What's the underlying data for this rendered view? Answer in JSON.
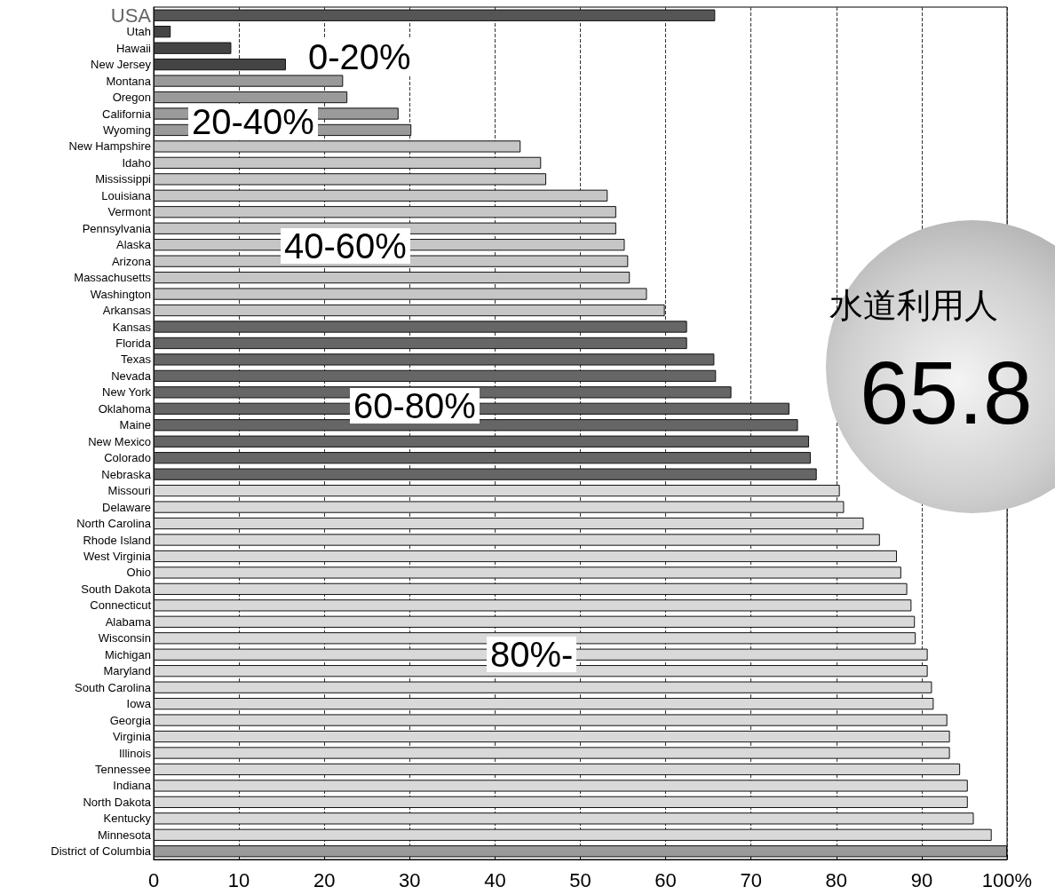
{
  "chart_data": {
    "type": "bar",
    "orientation": "horizontal",
    "categories": [
      "USA",
      "Utah",
      "Hawaii",
      "New Jersey",
      "Montana",
      "Oregon",
      "California",
      "Wyoming",
      "New Hampshire",
      "Idaho",
      "Mississippi",
      "Louisiana",
      "Vermont",
      "Pennsylvania",
      "Alaska",
      "Arizona",
      "Massachusetts",
      "Washington",
      "Arkansas",
      "Kansas",
      "Florida",
      "Texas",
      "Nevada",
      "New York",
      "Oklahoma",
      "Maine",
      "New Mexico",
      "Colorado",
      "Nebraska",
      "Missouri",
      "Delaware",
      "North Carolina",
      "Rhode Island",
      "West Virginia",
      "Ohio",
      "South Dakota",
      "Connecticut",
      "Alabama",
      "Wisconsin",
      "Michigan",
      "Maryland",
      "South Carolina",
      "Iowa",
      "Georgia",
      "Virginia",
      "Illinois",
      "Tennessee",
      "Indiana",
      "North Dakota",
      "Kentucky",
      "Minnesota",
      "District of Columbia"
    ],
    "values": [
      65.8,
      2.0,
      9.1,
      15.5,
      22.2,
      22.7,
      28.7,
      30.2,
      43.0,
      45.4,
      46.0,
      53.2,
      54.2,
      54.2,
      55.2,
      55.6,
      55.8,
      57.8,
      59.9,
      62.5,
      62.5,
      65.7,
      65.9,
      67.7,
      74.5,
      75.5,
      76.8,
      77.0,
      77.7,
      80.4,
      80.9,
      83.2,
      85.1,
      87.1,
      87.6,
      88.3,
      88.8,
      89.2,
      89.3,
      90.7,
      90.7,
      91.2,
      91.4,
      93.0,
      93.3,
      93.3,
      94.5,
      95.4,
      95.4,
      96.1,
      98.2,
      100
    ],
    "colors": [
      "#555555",
      "#444444",
      "#444444",
      "#444444",
      "#9a9a9a",
      "#9a9a9a",
      "#9a9a9a",
      "#9a9a9a",
      "#c6c6c6",
      "#c6c6c6",
      "#c6c6c6",
      "#c6c6c6",
      "#c6c6c6",
      "#c6c6c6",
      "#c6c6c6",
      "#c6c6c6",
      "#c6c6c6",
      "#c6c6c6",
      "#c6c6c6",
      "#666666",
      "#666666",
      "#666666",
      "#666666",
      "#666666",
      "#666666",
      "#666666",
      "#666666",
      "#666666",
      "#666666",
      "#d9d9d9",
      "#d9d9d9",
      "#d9d9d9",
      "#d9d9d9",
      "#d9d9d9",
      "#d9d9d9",
      "#d9d9d9",
      "#d9d9d9",
      "#d9d9d9",
      "#d9d9d9",
      "#d9d9d9",
      "#d9d9d9",
      "#d9d9d9",
      "#d9d9d9",
      "#d9d9d9",
      "#d9d9d9",
      "#d9d9d9",
      "#d9d9d9",
      "#d9d9d9",
      "#d9d9d9",
      "#d9d9d9",
      "#d9d9d9",
      "#9a9a9a"
    ],
    "xlim": [
      0,
      100
    ],
    "xticks": [
      0,
      10,
      20,
      30,
      40,
      50,
      60,
      70,
      80,
      90,
      {
        "value": 100,
        "label": "100%"
      }
    ],
    "grid": "x",
    "annotations": [
      "0-20%",
      "20-40%",
      "40-60%",
      "60-80%",
      "80%-",
      "水道利用人",
      "65.8"
    ]
  }
}
